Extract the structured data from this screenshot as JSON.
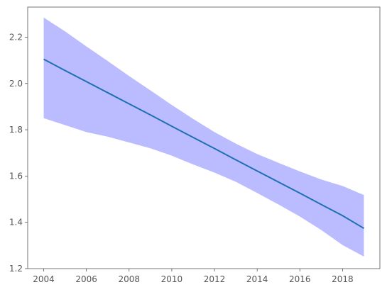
{
  "chart_data": {
    "type": "line",
    "title": "",
    "xlabel": "",
    "ylabel": "",
    "xlim": [
      2003.25,
      2019.75
    ],
    "ylim": [
      1.2,
      2.33
    ],
    "x_ticks": [
      2004,
      2006,
      2008,
      2010,
      2012,
      2014,
      2016,
      2018
    ],
    "y_ticks": [
      1.2,
      1.4,
      1.6,
      1.8,
      2.0,
      2.2
    ],
    "x_tick_labels": [
      "2004",
      "2006",
      "2008",
      "2010",
      "2012",
      "2014",
      "2016",
      "2018"
    ],
    "y_tick_labels": [
      "1.2",
      "1.4",
      "1.6",
      "1.8",
      "2.0",
      "2.2"
    ],
    "grid": false,
    "x": [
      2004,
      2005,
      2006,
      2007,
      2008,
      2009,
      2010,
      2011,
      2012,
      2013,
      2014,
      2015,
      2016,
      2017,
      2018,
      2019
    ],
    "series": [
      {
        "values": [
          2.105,
          2.056,
          2.008,
          1.96,
          1.912,
          1.864,
          1.815,
          1.767,
          1.719,
          1.67,
          1.622,
          1.574,
          1.526,
          1.477,
          1.429,
          1.374
        ],
        "lower": [
          1.85,
          1.82,
          1.79,
          1.77,
          1.745,
          1.72,
          1.688,
          1.65,
          1.615,
          1.575,
          1.527,
          1.477,
          1.425,
          1.367,
          1.302,
          1.252
        ],
        "upper": [
          2.285,
          2.225,
          2.16,
          2.097,
          2.032,
          1.97,
          1.907,
          1.847,
          1.79,
          1.74,
          1.695,
          1.657,
          1.62,
          1.585,
          1.557,
          1.518
        ]
      }
    ],
    "colors": {
      "line": "#1f6fb4",
      "band": "#bbbbff",
      "axis": "#555555"
    }
  }
}
